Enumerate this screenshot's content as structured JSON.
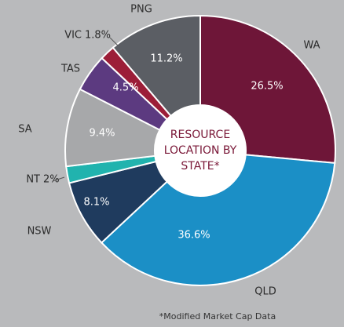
{
  "chart_data": {
    "type": "donut",
    "categories": [
      "WA",
      "QLD",
      "NSW",
      "NT",
      "SA",
      "TAS",
      "VIC",
      "PNG"
    ],
    "values": [
      26.5,
      36.6,
      8.1,
      2,
      9.4,
      4.5,
      1.8,
      11.2
    ],
    "value_labels": [
      "26.5%",
      "36.6%",
      "8.1%",
      "2%",
      "9.4%",
      "4.5%",
      "1.8%",
      "11.2%"
    ],
    "colors": [
      "#6e1638",
      "#1b8fc6",
      "#1f3b5e",
      "#21b3ae",
      "#a7a8aa",
      "#5c3a80",
      "#9c1e38",
      "#5b5e64"
    ],
    "center_label": [
      "RESOURCE",
      "LOCATION BY",
      "STATE*"
    ],
    "footnote": "*Modified Market Cap Data"
  }
}
